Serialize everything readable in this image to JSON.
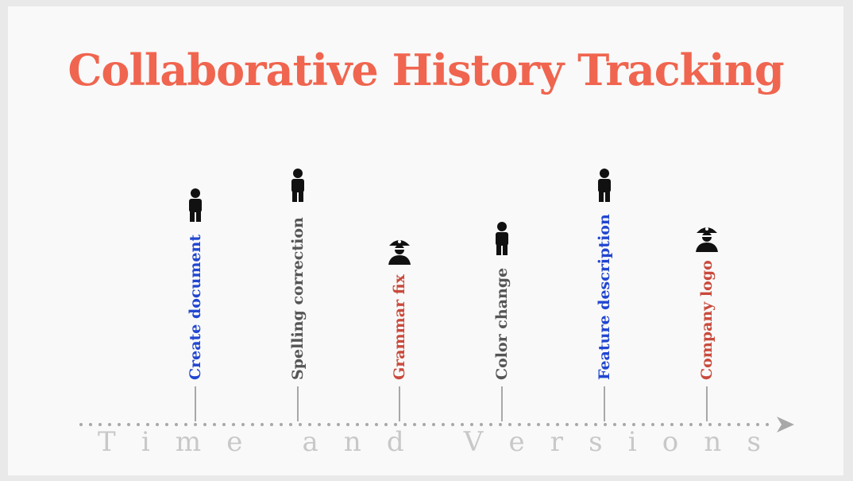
{
  "title": "Collaborative History Tracking",
  "axis_label": "Time and Versions",
  "colors": {
    "title": "#f0654f",
    "blue": "#2146d0",
    "gray": "#555555",
    "red": "#c94a3c",
    "axis": "#a8a8a8",
    "axis_text": "#c8c8c8"
  },
  "events": [
    {
      "label": "Create document",
      "color": "#2146d0",
      "icon": "person-icon"
    },
    {
      "label": "Spelling correction",
      "color": "#555555",
      "icon": "person-icon"
    },
    {
      "label": "Grammar fix",
      "color": "#c94a3c",
      "icon": "pirate-icon"
    },
    {
      "label": "Color change",
      "color": "#555555",
      "icon": "person-icon"
    },
    {
      "label": "Feature description",
      "color": "#2146d0",
      "icon": "person-icon"
    },
    {
      "label": "Company logo",
      "color": "#c94a3c",
      "icon": "pirate-icon"
    }
  ]
}
